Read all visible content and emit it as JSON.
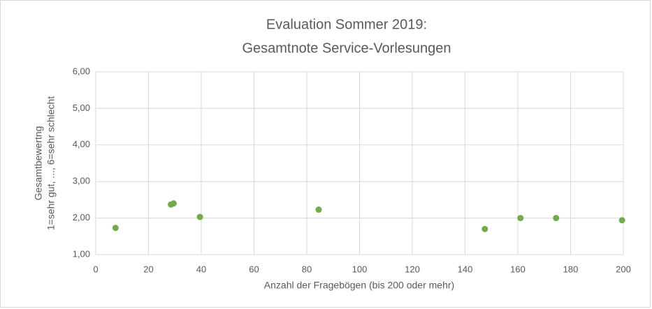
{
  "chart_data": {
    "type": "scatter",
    "title": [
      "Evaluation Sommer 2019:",
      "Gesamtnote Service-Vorlesungen"
    ],
    "xlabel": "Anzahl der Fragebögen (bis 200 oder mehr)",
    "ylabel": [
      "Gesamtbewertng",
      "1=sehr gut, ..., 6=sehr schlecht"
    ],
    "series": [
      {
        "color": "#70ad47",
        "x": [
          7.5,
          28.5,
          29.5,
          39.5,
          84.5,
          147.5,
          161,
          174.5,
          199.5
        ],
        "values": [
          1.73,
          2.37,
          2.4,
          2.03,
          2.23,
          1.7,
          2.0,
          2.0,
          1.94
        ]
      }
    ],
    "xlim": [
      0,
      200
    ],
    "xticks": [
      0,
      20,
      40,
      60,
      80,
      100,
      120,
      140,
      160,
      180,
      200
    ],
    "ylim": [
      1,
      6
    ],
    "yticks": [
      {
        "value": 1,
        "label": "1,00"
      },
      {
        "value": 2,
        "label": "2,00"
      },
      {
        "value": 3,
        "label": "3,00"
      },
      {
        "value": 4,
        "label": "4,00"
      },
      {
        "value": 5,
        "label": "5,00"
      },
      {
        "value": 6,
        "label": "6,00"
      }
    ],
    "grid": true
  }
}
